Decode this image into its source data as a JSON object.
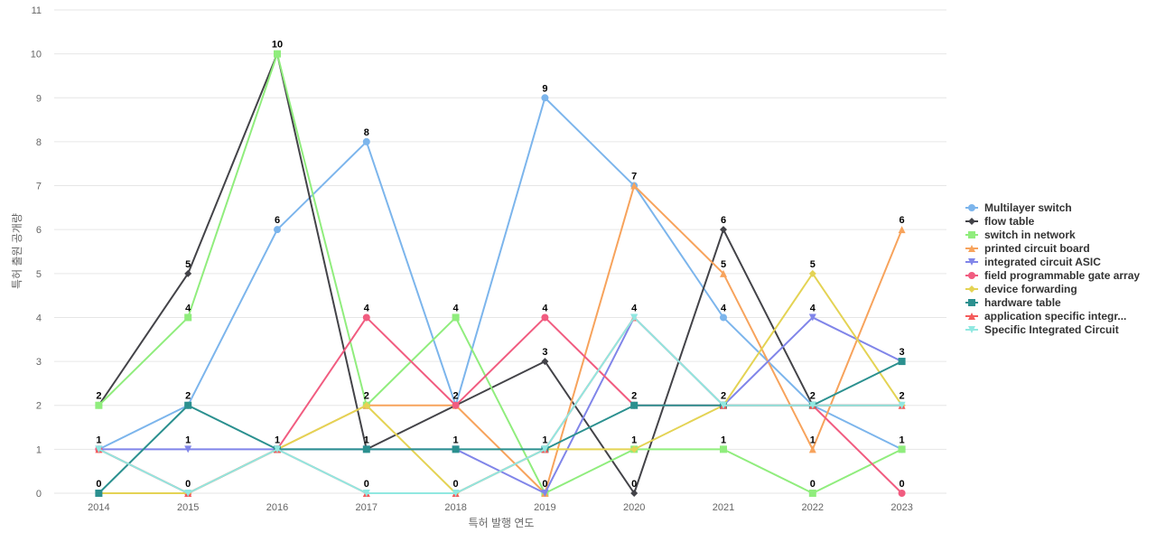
{
  "chart_data": {
    "type": "line",
    "xlabel": "특허 발행 연도",
    "ylabel": "특허 출원 공개량",
    "ylim": [
      0,
      11
    ],
    "y_ticks": [
      0,
      1,
      2,
      3,
      4,
      5,
      6,
      7,
      8,
      9,
      10,
      11
    ],
    "categories": [
      "2014",
      "2015",
      "2016",
      "2017",
      "2018",
      "2019",
      "2020",
      "2021",
      "2022",
      "2023"
    ],
    "grid": true,
    "legend_position": "right",
    "series": [
      {
        "name": "Multilayer switch",
        "color": "#7cb5ec",
        "marker": "circle",
        "values": [
          1,
          2,
          6,
          8,
          2,
          9,
          7,
          4,
          2,
          1
        ]
      },
      {
        "name": "flow table",
        "color": "#434348",
        "marker": "diamond",
        "values": [
          2,
          5,
          10,
          1,
          2,
          3,
          0,
          6,
          2,
          2
        ]
      },
      {
        "name": "switch in network",
        "color": "#90ed7d",
        "marker": "square",
        "values": [
          2,
          4,
          10,
          2,
          4,
          0,
          1,
          1,
          0,
          1
        ]
      },
      {
        "name": "printed circuit board",
        "color": "#f7a35c",
        "marker": "triangle",
        "values": [
          0,
          0,
          1,
          2,
          2,
          0,
          7,
          5,
          1,
          6
        ]
      },
      {
        "name": "integrated circuit ASIC",
        "color": "#8085e9",
        "marker": "triangle-down",
        "values": [
          1,
          1,
          1,
          1,
          1,
          0,
          4,
          2,
          4,
          3
        ]
      },
      {
        "name": "field programmable gate array",
        "color": "#f15c80",
        "marker": "circle",
        "values": [
          1,
          0,
          1,
          4,
          2,
          4,
          2,
          2,
          2,
          0
        ]
      },
      {
        "name": "device forwarding",
        "color": "#e4d354",
        "marker": "diamond",
        "values": [
          0,
          0,
          1,
          2,
          0,
          1,
          1,
          2,
          5,
          2
        ]
      },
      {
        "name": "hardware table",
        "color": "#2b908f",
        "marker": "square",
        "values": [
          0,
          2,
          1,
          1,
          1,
          1,
          2,
          2,
          2,
          3
        ]
      },
      {
        "name": "application specific integr...",
        "color": "#f45b5b",
        "marker": "triangle",
        "values": [
          1,
          0,
          1,
          0,
          0,
          1,
          4,
          2,
          2,
          2
        ]
      },
      {
        "name": "Specific Integrated Circuit",
        "color": "#91e8e1",
        "marker": "triangle-down",
        "values": [
          1,
          0,
          1,
          0,
          0,
          1,
          4,
          2,
          2,
          2
        ]
      }
    ],
    "data_labels": [
      {
        "x": "2014",
        "y": 0,
        "text": "0"
      },
      {
        "x": "2014",
        "y": 1,
        "text": "1"
      },
      {
        "x": "2014",
        "y": 2,
        "text": "2"
      },
      {
        "x": "2015",
        "y": 0,
        "text": "0"
      },
      {
        "x": "2015",
        "y": 1,
        "text": "1"
      },
      {
        "x": "2015",
        "y": 2,
        "text": "2"
      },
      {
        "x": "2015",
        "y": 4,
        "text": "4"
      },
      {
        "x": "2015",
        "y": 5,
        "text": "5"
      },
      {
        "x": "2016",
        "y": 1,
        "text": "1"
      },
      {
        "x": "2016",
        "y": 6,
        "text": "6"
      },
      {
        "x": "2016",
        "y": 10,
        "text": "10"
      },
      {
        "x": "2017",
        "y": 0,
        "text": "0"
      },
      {
        "x": "2017",
        "y": 1,
        "text": "1"
      },
      {
        "x": "2017",
        "y": 2,
        "text": "2"
      },
      {
        "x": "2017",
        "y": 4,
        "text": "4"
      },
      {
        "x": "2017",
        "y": 8,
        "text": "8"
      },
      {
        "x": "2018",
        "y": 0,
        "text": "0"
      },
      {
        "x": "2018",
        "y": 1,
        "text": "1"
      },
      {
        "x": "2018",
        "y": 2,
        "text": "2"
      },
      {
        "x": "2018",
        "y": 4,
        "text": "4"
      },
      {
        "x": "2019",
        "y": 0,
        "text": "0"
      },
      {
        "x": "2019",
        "y": 1,
        "text": "1"
      },
      {
        "x": "2019",
        "y": 3,
        "text": "3"
      },
      {
        "x": "2019",
        "y": 4,
        "text": "4"
      },
      {
        "x": "2019",
        "y": 9,
        "text": "9"
      },
      {
        "x": "2020",
        "y": 0,
        "text": "0"
      },
      {
        "x": "2020",
        "y": 1,
        "text": "1"
      },
      {
        "x": "2020",
        "y": 2,
        "text": "2"
      },
      {
        "x": "2020",
        "y": 4,
        "text": "4"
      },
      {
        "x": "2020",
        "y": 7,
        "text": "7"
      },
      {
        "x": "2021",
        "y": 1,
        "text": "1"
      },
      {
        "x": "2021",
        "y": 2,
        "text": "2"
      },
      {
        "x": "2021",
        "y": 4,
        "text": "4"
      },
      {
        "x": "2021",
        "y": 5,
        "text": "5"
      },
      {
        "x": "2021",
        "y": 6,
        "text": "6"
      },
      {
        "x": "2022",
        "y": 0,
        "text": "0"
      },
      {
        "x": "2022",
        "y": 1,
        "text": "1"
      },
      {
        "x": "2022",
        "y": 2,
        "text": "2"
      },
      {
        "x": "2022",
        "y": 4,
        "text": "4"
      },
      {
        "x": "2022",
        "y": 5,
        "text": "5"
      },
      {
        "x": "2023",
        "y": 0,
        "text": "0"
      },
      {
        "x": "2023",
        "y": 1,
        "text": "1"
      },
      {
        "x": "2023",
        "y": 2,
        "text": "2"
      },
      {
        "x": "2023",
        "y": 3,
        "text": "3"
      },
      {
        "x": "2023",
        "y": 6,
        "text": "6"
      }
    ]
  }
}
